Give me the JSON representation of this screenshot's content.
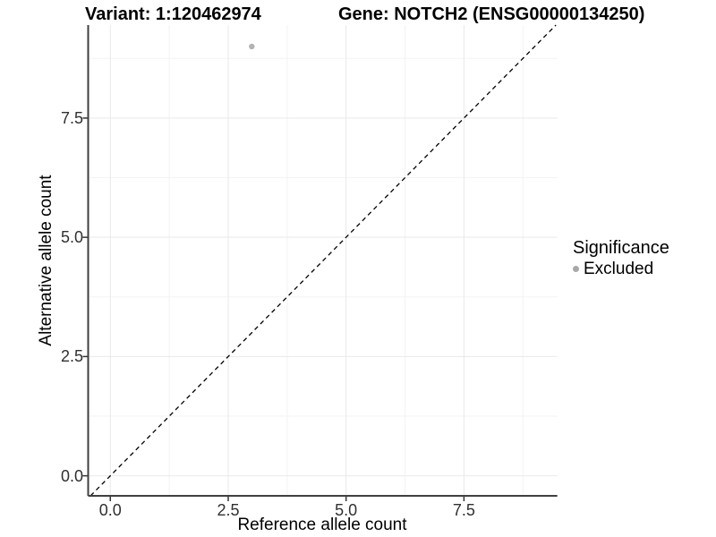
{
  "chart_data": {
    "type": "scatter",
    "title_left": "Variant: 1:120462974",
    "title_right": "Gene: NOTCH2 (ENSG00000134250)",
    "xlabel": "Reference allele count",
    "ylabel": "Alternative allele count",
    "xlim": [
      -0.47,
      9.48
    ],
    "ylim": [
      -0.42,
      9.45
    ],
    "x_ticks": [
      0,
      2.5,
      5,
      7.5
    ],
    "x_tick_labels": [
      "0.0",
      "2.5",
      "5.0",
      "7.5"
    ],
    "y_ticks": [
      0,
      2.5,
      5,
      7.5
    ],
    "y_tick_labels": [
      "0.0",
      "2.5",
      "5.0",
      "7.5"
    ],
    "minor_ticks": [
      1.25,
      3.75,
      6.25,
      8.75
    ],
    "grid": true,
    "identity_line": {
      "style": "dashed",
      "slope": 1,
      "intercept": 0
    },
    "points": [
      {
        "x": 3,
        "y": 9,
        "series": "Excluded"
      }
    ],
    "legend": {
      "title": "Significance",
      "position": "right",
      "items": [
        {
          "label": "Excluded",
          "color": "#a8a8a8"
        }
      ]
    },
    "colors": {
      "point": "#b3b3b3",
      "legend_dot": "#a8a8a8",
      "grid_major": "#e9e9e9",
      "grid_minor": "#f3f3f3",
      "axis_line": "#404040",
      "tick_mark": "#333333",
      "tick_text": "#303030",
      "identity_line": "#000000",
      "background": "#ffffff"
    }
  }
}
